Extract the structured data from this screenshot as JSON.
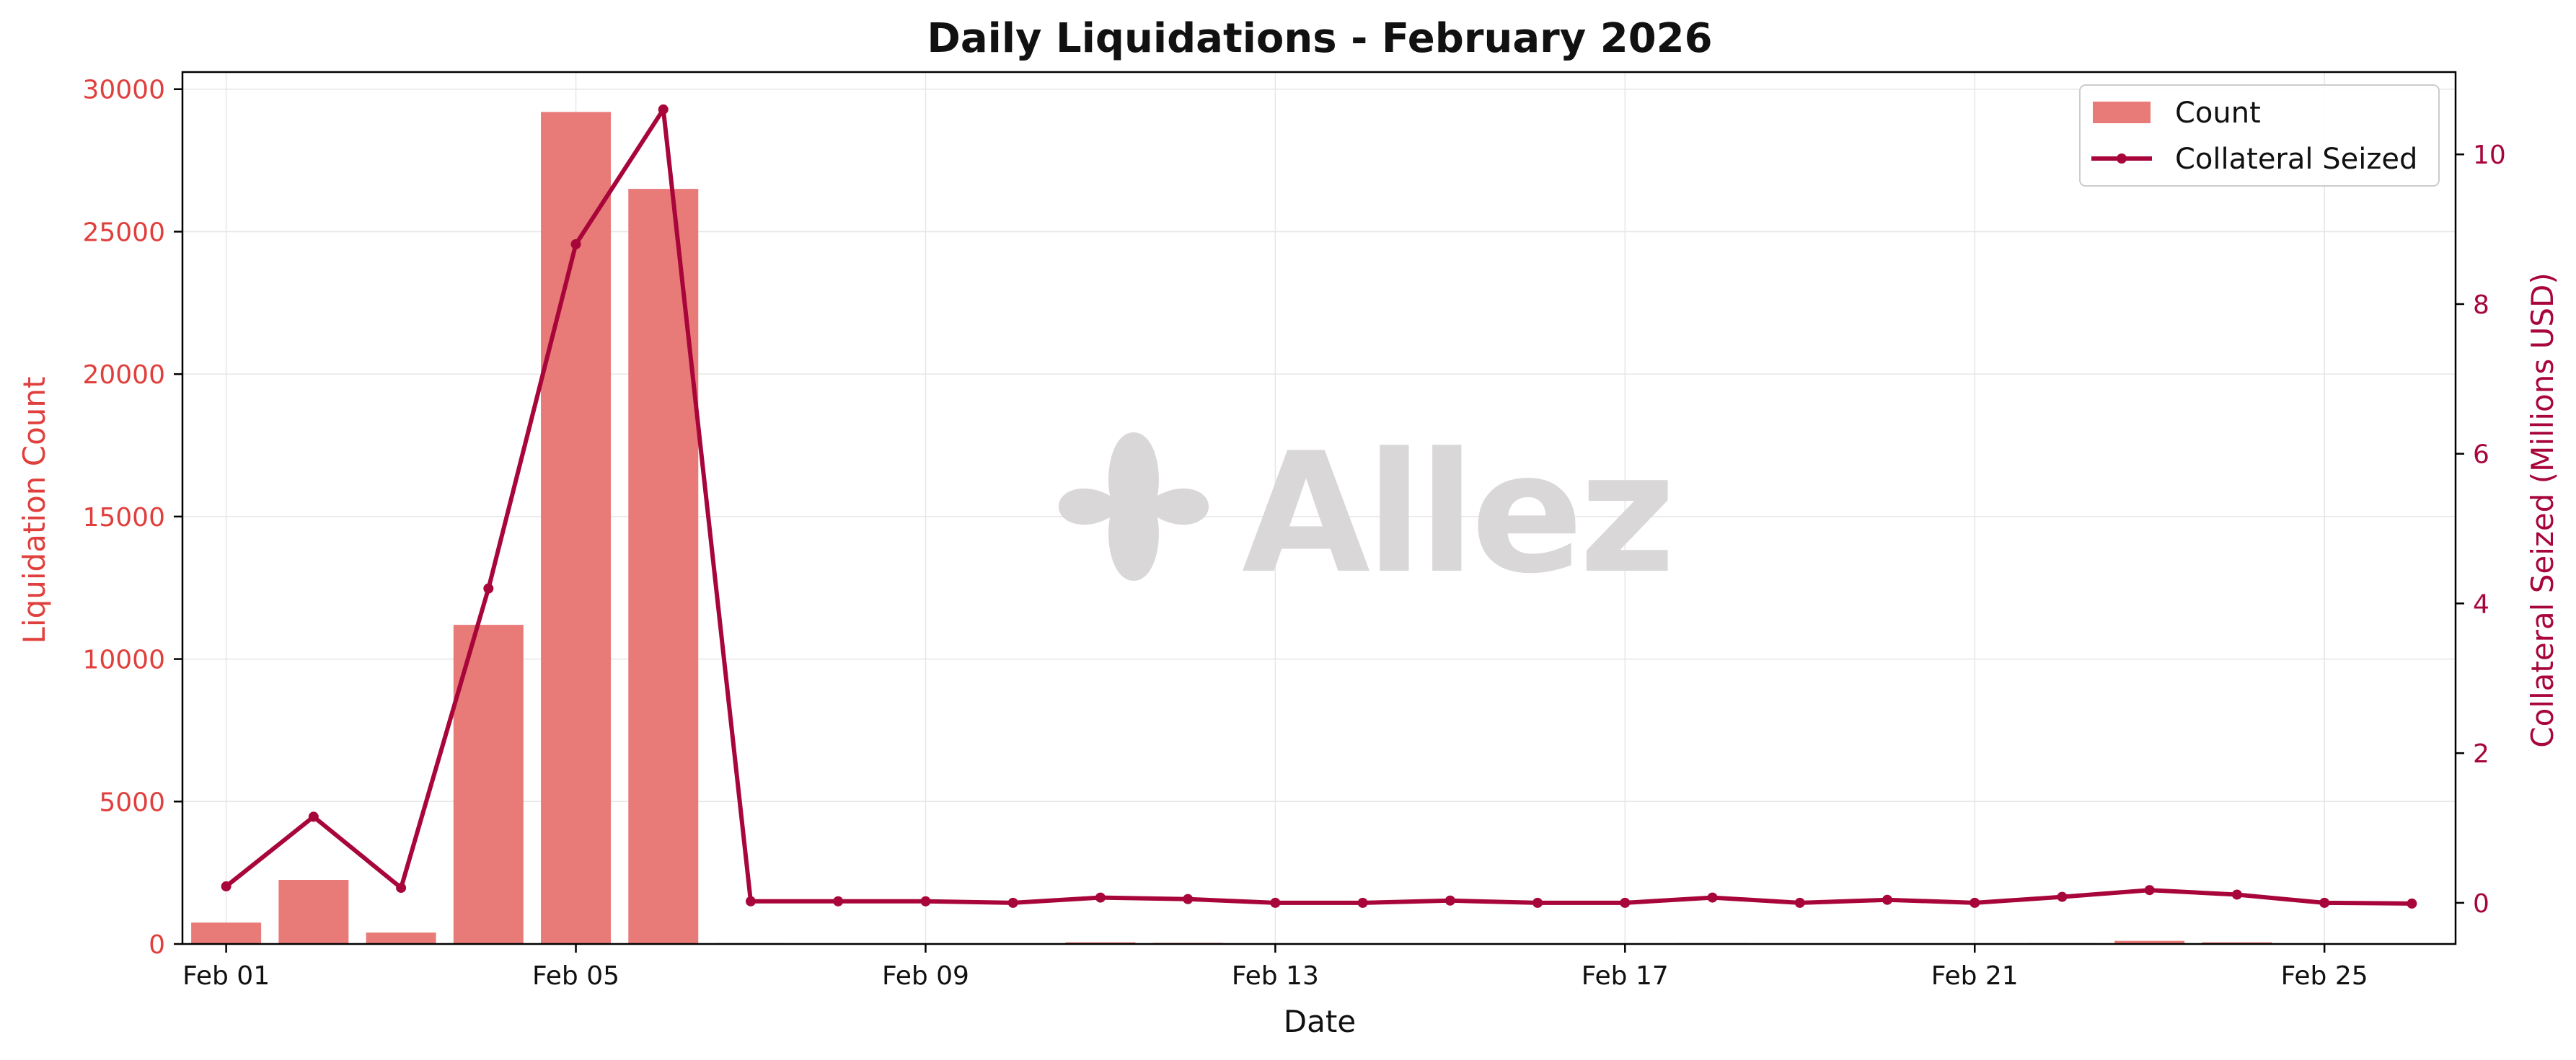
{
  "colors": {
    "bar": "#e87a78",
    "line": "#a8063a",
    "left_axis": "#e0403d",
    "right_axis": "#a8063a",
    "grid": "#e6e6e6",
    "text": "#111111",
    "watermark": "#d9d7d7"
  },
  "watermark": {
    "text": "Allez",
    "icon": "sparkle-logo-icon"
  },
  "chart_data": {
    "type": "bar",
    "title": "Daily Liquidations - February 2026",
    "xlabel": "Date",
    "ylabel": "Liquidation Count",
    "y2label": "Collateral Seized (Millions USD)",
    "ylim": [
      0,
      30600
    ],
    "y2lim": [
      -0.55,
      11.1
    ],
    "xlim": [
      0.5,
      26.5
    ],
    "grid": true,
    "legend_position": "top-right",
    "x_ticks": [
      {
        "day": 1,
        "label": "Feb 01"
      },
      {
        "day": 5,
        "label": "Feb 05"
      },
      {
        "day": 9,
        "label": "Feb 09"
      },
      {
        "day": 13,
        "label": "Feb 13"
      },
      {
        "day": 17,
        "label": "Feb 17"
      },
      {
        "day": 21,
        "label": "Feb 21"
      },
      {
        "day": 25,
        "label": "Feb 25"
      }
    ],
    "y_ticks": [
      0,
      5000,
      10000,
      15000,
      20000,
      25000,
      30000
    ],
    "y2_ticks": [
      0,
      2,
      4,
      6,
      8,
      10
    ],
    "x": [
      "Feb 01",
      "Feb 02",
      "Feb 03",
      "Feb 04",
      "Feb 05",
      "Feb 06",
      "Feb 07",
      "Feb 08",
      "Feb 09",
      "Feb 10",
      "Feb 11",
      "Feb 12",
      "Feb 13",
      "Feb 14",
      "Feb 15",
      "Feb 16",
      "Feb 17",
      "Feb 18",
      "Feb 19",
      "Feb 20",
      "Feb 21",
      "Feb 22",
      "Feb 23",
      "Feb 24",
      "Feb 25",
      "Feb 26"
    ],
    "series": [
      {
        "name": "Count",
        "type": "bar",
        "axis": "left",
        "values": [
          750,
          2250,
          400,
          11200,
          29200,
          26500,
          30,
          20,
          20,
          15,
          60,
          40,
          15,
          15,
          25,
          15,
          15,
          30,
          15,
          25,
          15,
          30,
          110,
          60,
          15,
          10
        ]
      },
      {
        "name": "Collateral Seized",
        "type": "line",
        "axis": "right",
        "values": [
          0.22,
          1.15,
          0.2,
          4.2,
          8.8,
          10.6,
          0.02,
          0.02,
          0.02,
          0.0,
          0.07,
          0.05,
          0.0,
          0.0,
          0.03,
          0.0,
          0.0,
          0.07,
          0.0,
          0.04,
          0.0,
          0.08,
          0.17,
          0.11,
          0.0,
          -0.01
        ]
      }
    ]
  }
}
